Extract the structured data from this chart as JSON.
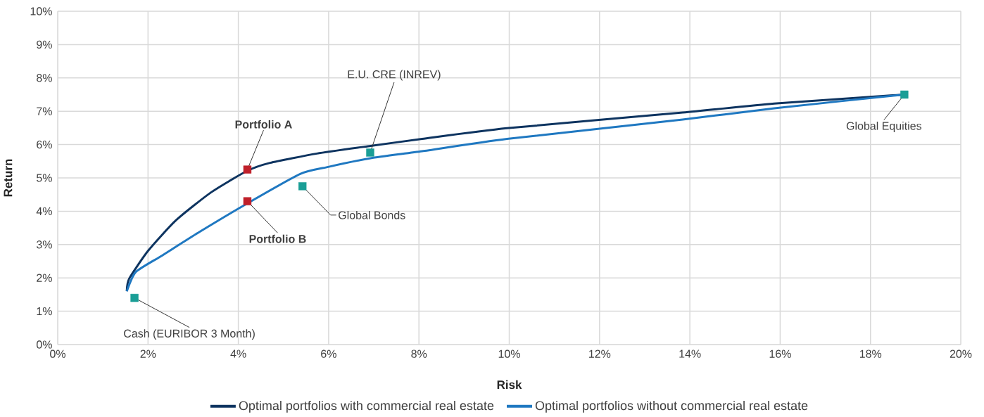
{
  "chart_data": {
    "type": "line",
    "xlabel": "Risk",
    "ylabel": "Return",
    "xlim": [
      0,
      20
    ],
    "ylim": [
      0,
      10
    ],
    "xticks": [
      {
        "value": 0,
        "label": "0%"
      },
      {
        "value": 2,
        "label": "2%"
      },
      {
        "value": 4,
        "label": "4%"
      },
      {
        "value": 6,
        "label": "6%"
      },
      {
        "value": 8,
        "label": "8%"
      },
      {
        "value": 10,
        "label": "10%"
      },
      {
        "value": 12,
        "label": "12%"
      },
      {
        "value": 14,
        "label": "14%"
      },
      {
        "value": 16,
        "label": "16%"
      },
      {
        "value": 18,
        "label": "18%"
      },
      {
        "value": 20,
        "label": "20%"
      }
    ],
    "yticks": [
      {
        "value": 0,
        "label": "0%"
      },
      {
        "value": 1,
        "label": "1%"
      },
      {
        "value": 2,
        "label": "2%"
      },
      {
        "value": 3,
        "label": "3%"
      },
      {
        "value": 4,
        "label": "4%"
      },
      {
        "value": 5,
        "label": "5%"
      },
      {
        "value": 6,
        "label": "6%"
      },
      {
        "value": 7,
        "label": "7%"
      },
      {
        "value": 8,
        "label": "8%"
      },
      {
        "value": 9,
        "label": "9%"
      },
      {
        "value": 10,
        "label": "10%"
      }
    ],
    "grid": true,
    "legend": "bottom",
    "series": [
      {
        "name": "Optimal portfolios with commercial real estate",
        "marker": "none",
        "color": "#0e3460",
        "x": [
          1.53,
          1.58,
          2.0,
          2.62,
          3.4,
          4.18,
          4.7,
          5.74,
          6.93,
          8.07,
          9.95,
          13.84,
          15.87,
          18.75
        ],
        "values": [
          1.6,
          1.97,
          2.81,
          3.73,
          4.57,
          5.2,
          5.45,
          5.73,
          5.96,
          6.17,
          6.49,
          6.96,
          7.23,
          7.5
        ]
      },
      {
        "name": "Optimal portfolios without commercial real estate",
        "marker": "none",
        "color": "#1f78c1",
        "x": [
          1.53,
          1.73,
          2.31,
          3.14,
          4.18,
          5.37,
          5.99,
          6.93,
          8.07,
          9.95,
          13.84,
          15.87,
          18.75
        ],
        "values": [
          1.6,
          2.18,
          2.67,
          3.38,
          4.22,
          5.12,
          5.33,
          5.59,
          5.8,
          6.17,
          6.75,
          7.09,
          7.5
        ]
      },
      {
        "type": "scatter",
        "marker": "square",
        "x": [
          1.7,
          4.2,
          4.2,
          5.42,
          6.92,
          18.75
        ],
        "values": [
          1.4,
          5.25,
          4.3,
          4.75,
          5.76,
          7.5
        ],
        "colors": [
          "#1a9e96",
          "#c0202a",
          "#c0202a",
          "#1a9e96",
          "#1a9e96",
          "#1a9e96"
        ]
      }
    ],
    "annotations": [
      {
        "text": "Cash (EURIBOR 3 Month)",
        "x": 1.7,
        "y": 1.4
      },
      {
        "text": "Portfolio A",
        "x": 4.2,
        "y": 5.25
      },
      {
        "text": "Portfolio B",
        "x": 4.2,
        "y": 4.3
      },
      {
        "text": "Global Bonds",
        "x": 5.42,
        "y": 4.75
      },
      {
        "text": "E.U. CRE (INREV)",
        "x": 6.92,
        "y": 5.76
      },
      {
        "text": "Global Equities",
        "x": 18.75,
        "y": 7.5
      }
    ]
  }
}
